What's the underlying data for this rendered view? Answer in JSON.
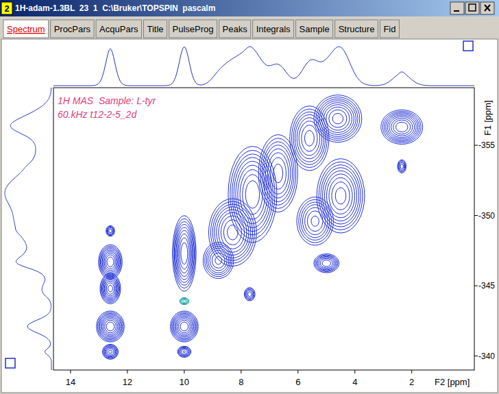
{
  "window": {
    "number": "2",
    "title": "1H-adam-1.3BL  23  1  C:\\Bruker\\TOPSPIN  pascalm",
    "tabs": [
      {
        "label": "Spectrum",
        "active": true
      },
      {
        "label": "ProcPars",
        "active": false
      },
      {
        "label": "AcquPars",
        "active": false
      },
      {
        "label": "Title",
        "active": false
      },
      {
        "label": "PulseProg",
        "active": false
      },
      {
        "label": "Peaks",
        "active": false
      },
      {
        "label": "Integrals",
        "active": false
      },
      {
        "label": "Sample",
        "active": false
      },
      {
        "label": "Structure",
        "active": false
      },
      {
        "label": "Fid",
        "active": false
      }
    ]
  },
  "chart_data": {
    "type": "contour",
    "annotations": [
      "1H MAS  Sample: L-tyr",
      "60.kHz t12-2-5_2d"
    ],
    "x_label": "F2 [ppm]",
    "y_label": "F1 [ppm]",
    "xlim": [
      14.6,
      -0.2
    ],
    "ylim": [
      -359.1,
      -339.0
    ],
    "xticks": [
      14,
      12,
      10,
      8,
      6,
      4,
      2
    ],
    "yticks": [
      -355,
      -350,
      -345,
      -340
    ],
    "color": "#1f2fd6",
    "levels": [
      0.05,
      0.08,
      0.12,
      0.17,
      0.24,
      0.33,
      0.45,
      0.6,
      0.78
    ],
    "peaks": [
      {
        "x": 12.6,
        "y": -348.9,
        "wx": 0.08,
        "wy": 0.2,
        "height": 0.3
      },
      {
        "x": 12.6,
        "y": -346.7,
        "wx": 0.17,
        "wy": 0.5,
        "height": 1
      },
      {
        "x": 12.6,
        "y": -344.8,
        "wx": 0.15,
        "wy": 0.45,
        "height": 0.9
      },
      {
        "x": 12.6,
        "y": -342.1,
        "wx": 0.2,
        "wy": 0.45,
        "height": 1
      },
      {
        "x": 12.6,
        "y": -340.3,
        "wx": 0.13,
        "wy": 0.25,
        "height": 0.5
      },
      {
        "x": 10.0,
        "y": -347.3,
        "wx": 0.17,
        "wy": 1.1,
        "height": 1
      },
      {
        "x": 10.0,
        "y": -342.1,
        "wx": 0.2,
        "wy": 0.45,
        "height": 1
      },
      {
        "x": 10.0,
        "y": -340.3,
        "wx": 0.12,
        "wy": 0.2,
        "height": 0.35
      },
      {
        "x": 10.0,
        "y": -343.9,
        "wx": 0.1,
        "wy": 0.15,
        "height": -0.2,
        "color": "#11a0a0"
      },
      {
        "x": 8.3,
        "y": -348.8,
        "wx": 0.35,
        "wy": 1.0,
        "height": 0.9
      },
      {
        "x": 7.6,
        "y": -351.5,
        "wx": 0.35,
        "wy": 1.4,
        "height": 1
      },
      {
        "x": 6.7,
        "y": -353.0,
        "wx": 0.3,
        "wy": 1.2,
        "height": 0.7
      },
      {
        "x": 5.6,
        "y": -355.5,
        "wx": 0.3,
        "wy": 1.0,
        "height": 0.7
      },
      {
        "x": 4.6,
        "y": -356.9,
        "wx": 0.35,
        "wy": 0.7,
        "height": 0.9
      },
      {
        "x": 4.5,
        "y": -351.4,
        "wx": 0.35,
        "wy": 1.1,
        "height": 0.9
      },
      {
        "x": 5.4,
        "y": -349.6,
        "wx": 0.3,
        "wy": 0.8,
        "height": 0.5
      },
      {
        "x": 2.35,
        "y": -356.3,
        "wx": 0.3,
        "wy": 0.5,
        "height": 1
      },
      {
        "x": 2.35,
        "y": -353.5,
        "wx": 0.08,
        "wy": 0.25,
        "height": 0.3
      },
      {
        "x": 5.0,
        "y": -346.6,
        "wx": 0.2,
        "wy": 0.3,
        "height": 0.6
      },
      {
        "x": 7.7,
        "y": -344.4,
        "wx": 0.1,
        "wy": 0.25,
        "height": 0.3
      },
      {
        "x": 8.8,
        "y": -346.8,
        "wx": 0.25,
        "wy": 0.6,
        "height": 0.5
      }
    ]
  }
}
